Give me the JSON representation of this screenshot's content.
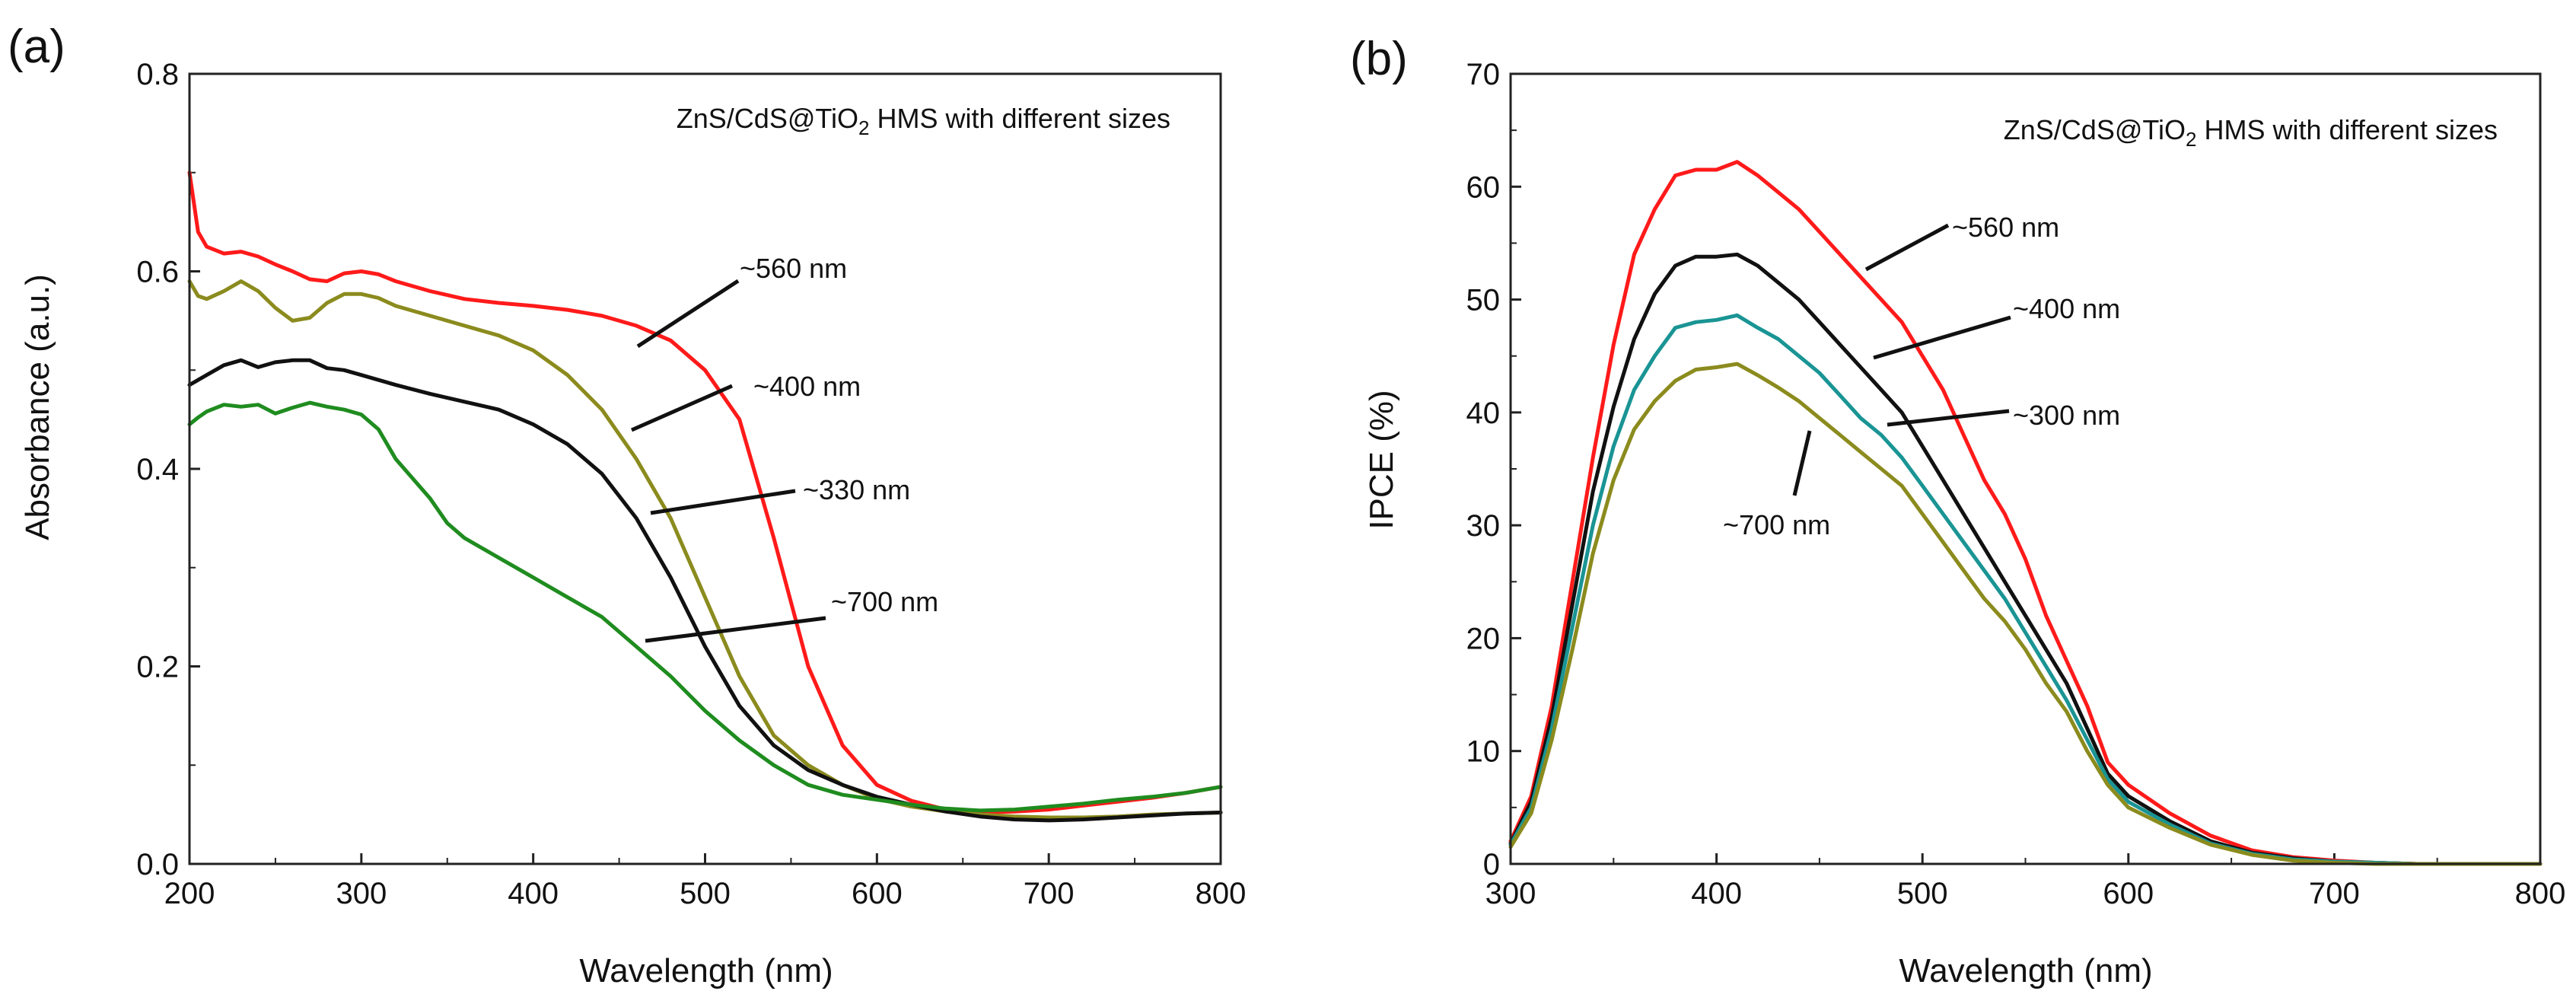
{
  "chart_data": [
    {
      "panel_label": "(a)",
      "type": "line",
      "title": "",
      "xlabel": "Wavelength (nm)",
      "ylabel": "Absorbance (a.u.)",
      "xlim": [
        200,
        800
      ],
      "ylim": [
        0,
        0.8
      ],
      "xticks": [
        200,
        300,
        400,
        500,
        600,
        700,
        800
      ],
      "xtick_labels": [
        "200",
        "300",
        "400",
        "500",
        "600",
        "700",
        "800"
      ],
      "yticks": [
        0.0,
        0.2,
        0.4,
        0.6,
        0.8
      ],
      "ytick_labels": [
        "0.0",
        "0.2",
        "0.4",
        "0.6",
        "0.8"
      ],
      "annotation": {
        "prefix": "ZnS/CdS@TiO",
        "subscript": "2",
        "suffix": " HMS with different sizes"
      },
      "series": [
        {
          "name": "~560 nm",
          "color": "#ff1a1a",
          "x": [
            200,
            205,
            210,
            220,
            230,
            240,
            250,
            260,
            270,
            280,
            290,
            300,
            310,
            320,
            340,
            360,
            380,
            400,
            420,
            440,
            460,
            480,
            500,
            520,
            540,
            560,
            580,
            600,
            620,
            640,
            660,
            680,
            700,
            720,
            740,
            760,
            780,
            800
          ],
          "y": [
            0.7,
            0.64,
            0.625,
            0.618,
            0.62,
            0.615,
            0.607,
            0.6,
            0.592,
            0.59,
            0.598,
            0.6,
            0.597,
            0.59,
            0.58,
            0.572,
            0.568,
            0.565,
            0.561,
            0.555,
            0.545,
            0.53,
            0.5,
            0.45,
            0.33,
            0.2,
            0.12,
            0.08,
            0.064,
            0.055,
            0.052,
            0.053,
            0.055,
            0.059,
            0.063,
            0.067,
            0.072,
            0.078
          ]
        },
        {
          "name": "~400 nm",
          "color": "#8b8b1e",
          "x": [
            200,
            205,
            210,
            220,
            230,
            240,
            250,
            260,
            270,
            280,
            290,
            300,
            310,
            320,
            340,
            360,
            380,
            400,
            420,
            440,
            460,
            480,
            500,
            520,
            540,
            560,
            580,
            600,
            620,
            640,
            660,
            680,
            700,
            720,
            740,
            760,
            780,
            800
          ],
          "y": [
            0.59,
            0.575,
            0.572,
            0.58,
            0.59,
            0.58,
            0.563,
            0.55,
            0.553,
            0.568,
            0.577,
            0.577,
            0.573,
            0.565,
            0.555,
            0.545,
            0.535,
            0.52,
            0.495,
            0.46,
            0.41,
            0.35,
            0.27,
            0.19,
            0.13,
            0.1,
            0.08,
            0.066,
            0.058,
            0.053,
            0.05,
            0.048,
            0.047,
            0.047,
            0.048,
            0.05,
            0.051,
            0.052
          ]
        },
        {
          "name": "~330 nm",
          "color": "#111111",
          "x": [
            200,
            205,
            210,
            220,
            230,
            240,
            250,
            260,
            270,
            280,
            290,
            300,
            310,
            320,
            340,
            360,
            380,
            400,
            420,
            440,
            460,
            480,
            500,
            520,
            540,
            560,
            580,
            600,
            620,
            640,
            660,
            680,
            700,
            720,
            740,
            760,
            780,
            800
          ],
          "y": [
            0.485,
            0.49,
            0.495,
            0.505,
            0.51,
            0.503,
            0.508,
            0.51,
            0.51,
            0.502,
            0.5,
            0.495,
            0.49,
            0.485,
            0.476,
            0.468,
            0.46,
            0.445,
            0.425,
            0.395,
            0.35,
            0.29,
            0.22,
            0.16,
            0.12,
            0.095,
            0.08,
            0.068,
            0.06,
            0.053,
            0.048,
            0.045,
            0.044,
            0.045,
            0.047,
            0.049,
            0.051,
            0.052
          ]
        },
        {
          "name": "~700 nm",
          "color": "#1f8c1f",
          "x": [
            200,
            205,
            210,
            220,
            230,
            240,
            250,
            260,
            270,
            280,
            290,
            300,
            310,
            320,
            340,
            350,
            360,
            380,
            400,
            420,
            440,
            460,
            480,
            500,
            520,
            540,
            560,
            580,
            600,
            620,
            640,
            660,
            680,
            700,
            720,
            740,
            760,
            780,
            800
          ],
          "y": [
            0.445,
            0.452,
            0.458,
            0.465,
            0.463,
            0.465,
            0.456,
            0.462,
            0.467,
            0.463,
            0.46,
            0.455,
            0.44,
            0.41,
            0.37,
            0.345,
            0.33,
            0.31,
            0.29,
            0.27,
            0.25,
            0.22,
            0.19,
            0.155,
            0.125,
            0.1,
            0.08,
            0.07,
            0.065,
            0.06,
            0.056,
            0.054,
            0.055,
            0.058,
            0.061,
            0.065,
            0.068,
            0.072,
            0.078
          ]
        }
      ],
      "line_labels": [
        "~560 nm",
        "~400 nm",
        "~330 nm",
        "~700 nm"
      ]
    },
    {
      "panel_label": "(b)",
      "type": "line",
      "title": "",
      "xlabel": "Wavelength (nm)",
      "ylabel": "IPCE (%)",
      "xlim": [
        300,
        800
      ],
      "ylim": [
        0,
        70
      ],
      "xticks": [
        300,
        400,
        500,
        600,
        700,
        800
      ],
      "xtick_labels": [
        "300",
        "400",
        "500",
        "600",
        "700",
        "800"
      ],
      "yticks": [
        0,
        10,
        20,
        30,
        40,
        50,
        60,
        70
      ],
      "ytick_labels": [
        "0",
        "10",
        "20",
        "30",
        "40",
        "50",
        "60",
        "70"
      ],
      "annotation": {
        "prefix": "ZnS/CdS@TiO",
        "subscript": "2",
        "suffix": " HMS with different sizes"
      },
      "series": [
        {
          "name": "~560 nm",
          "color": "#ff1a1a",
          "x": [
            300,
            310,
            320,
            330,
            340,
            350,
            360,
            370,
            380,
            390,
            400,
            410,
            420,
            430,
            440,
            450,
            460,
            470,
            480,
            490,
            500,
            510,
            520,
            530,
            540,
            550,
            560,
            570,
            580,
            590,
            600,
            620,
            640,
            660,
            680,
            700,
            720,
            740,
            760,
            780,
            800
          ],
          "y": [
            2,
            6,
            14,
            25,
            36,
            46,
            54,
            58,
            61,
            61.5,
            61.5,
            62.2,
            61,
            59.5,
            58,
            56,
            54,
            52,
            50,
            48,
            45,
            42,
            38,
            34,
            31,
            27,
            22,
            18,
            14,
            9,
            7,
            4.5,
            2.5,
            1.2,
            0.6,
            0.3,
            0.1,
            0,
            0,
            0,
            0
          ]
        },
        {
          "name": "~400 nm",
          "color": "#111111",
          "x": [
            300,
            310,
            320,
            330,
            340,
            350,
            360,
            370,
            380,
            390,
            400,
            410,
            420,
            430,
            440,
            450,
            460,
            470,
            480,
            490,
            500,
            510,
            520,
            530,
            540,
            550,
            560,
            570,
            580,
            590,
            600,
            620,
            640,
            660,
            680,
            700,
            720,
            740,
            760,
            780,
            800
          ],
          "y": [
            1.8,
            5.5,
            13,
            23,
            33,
            40.5,
            46.5,
            50.5,
            53,
            53.8,
            53.8,
            54,
            53,
            51.5,
            50,
            48,
            46,
            44,
            42,
            40,
            37,
            34,
            31,
            28,
            25,
            22,
            19,
            16,
            12,
            8,
            6,
            3.8,
            2,
            1,
            0.5,
            0.2,
            0.1,
            0,
            0,
            0,
            0
          ]
        },
        {
          "name": "~300 nm",
          "color": "#1a9494",
          "x": [
            300,
            310,
            320,
            330,
            340,
            350,
            360,
            370,
            380,
            390,
            400,
            410,
            420,
            430,
            440,
            450,
            460,
            470,
            480,
            490,
            500,
            510,
            520,
            530,
            540,
            550,
            560,
            570,
            580,
            590,
            600,
            620,
            640,
            660,
            680,
            700,
            720,
            740,
            760,
            780,
            800
          ],
          "y": [
            1.7,
            5,
            12,
            21,
            30,
            37,
            42,
            45,
            47.5,
            48,
            48.2,
            48.6,
            47.5,
            46.5,
            45,
            43.5,
            41.5,
            39.5,
            38,
            36,
            33.5,
            31,
            28.5,
            26,
            23.5,
            20.5,
            17.5,
            14.5,
            11,
            7.5,
            5.5,
            3.5,
            1.8,
            0.9,
            0.4,
            0.2,
            0.1,
            0,
            0,
            0,
            0
          ]
        },
        {
          "name": "~700 nm",
          "color": "#8b8b1e",
          "x": [
            300,
            310,
            320,
            330,
            340,
            350,
            360,
            370,
            380,
            390,
            400,
            410,
            420,
            430,
            440,
            450,
            460,
            470,
            480,
            490,
            500,
            510,
            520,
            530,
            540,
            550,
            560,
            570,
            580,
            590,
            600,
            620,
            640,
            660,
            680,
            700,
            720,
            740,
            760,
            780,
            800
          ],
          "y": [
            1.5,
            4.5,
            11,
            19,
            27.5,
            34,
            38.5,
            41,
            42.8,
            43.8,
            44,
            44.3,
            43.3,
            42.2,
            41,
            39.5,
            38,
            36.5,
            35,
            33.5,
            31,
            28.5,
            26,
            23.5,
            21.5,
            19,
            16,
            13.5,
            10,
            7,
            5,
            3.2,
            1.7,
            0.8,
            0.3,
            0.1,
            0,
            0,
            0,
            0,
            0
          ]
        }
      ],
      "line_labels": [
        "~560 nm",
        "~400 nm",
        "~300 nm",
        "~700 nm"
      ]
    }
  ]
}
